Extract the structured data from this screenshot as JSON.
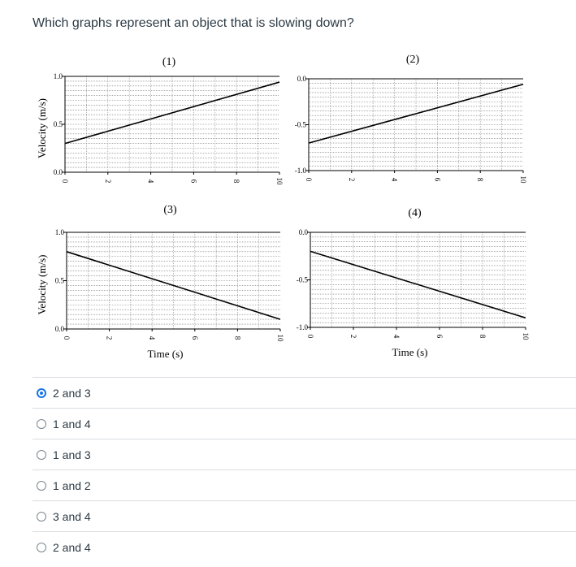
{
  "question": {
    "text": "Which graphs represent an object that is slowing down?"
  },
  "chart_data": [
    {
      "type": "line",
      "title": "(1)",
      "ylabel": "Velocity (m/s)",
      "xlabel": "",
      "xlim": [
        0,
        10
      ],
      "ylim": [
        0.0,
        1.0
      ],
      "xticks": [
        "0",
        "2",
        "4",
        "6",
        "8",
        "10"
      ],
      "yticks": [
        "0.0",
        "0.5",
        "1.0"
      ],
      "x": [
        0,
        10
      ],
      "y": [
        0.3,
        0.94
      ]
    },
    {
      "type": "line",
      "title": "(2)",
      "ylabel": "",
      "xlabel": "",
      "xlim": [
        0,
        10
      ],
      "ylim": [
        -1.0,
        0.0
      ],
      "xticks": [
        "0",
        "2",
        "4",
        "6",
        "8",
        "10"
      ],
      "yticks": [
        "-1.0",
        "-0.5",
        "0.0"
      ],
      "x": [
        0,
        10
      ],
      "y": [
        -0.7,
        -0.06
      ]
    },
    {
      "type": "line",
      "title": "(3)",
      "ylabel": "Velocity (m/s)",
      "xlabel": "Time (s)",
      "xlim": [
        0,
        10
      ],
      "ylim": [
        0.0,
        1.0
      ],
      "xticks": [
        "0",
        "2",
        "4",
        "6",
        "8",
        "10"
      ],
      "yticks": [
        "0.0",
        "0.5",
        "1.0"
      ],
      "x": [
        0,
        10
      ],
      "y": [
        0.8,
        0.1
      ]
    },
    {
      "type": "line",
      "title": "(4)",
      "ylabel": "",
      "xlabel": "Time (s)",
      "xlim": [
        0,
        10
      ],
      "ylim": [
        -1.0,
        0.0
      ],
      "xticks": [
        "0",
        "2",
        "4",
        "6",
        "8",
        "10"
      ],
      "yticks": [
        "-1.0",
        "-0.5",
        "0.0"
      ],
      "x": [
        0,
        10
      ],
      "y": [
        -0.2,
        -0.9
      ]
    }
  ],
  "answers": [
    {
      "label": "2 and 3",
      "selected": true
    },
    {
      "label": "1 and 4",
      "selected": false
    },
    {
      "label": "1 and 3",
      "selected": false
    },
    {
      "label": "1 and 2",
      "selected": false
    },
    {
      "label": "3 and 4",
      "selected": false
    },
    {
      "label": "2 and 4",
      "selected": false
    }
  ],
  "colors": {
    "accent": "#1a73e8",
    "text": "#2d3b45",
    "divider": "#d8dde1"
  }
}
